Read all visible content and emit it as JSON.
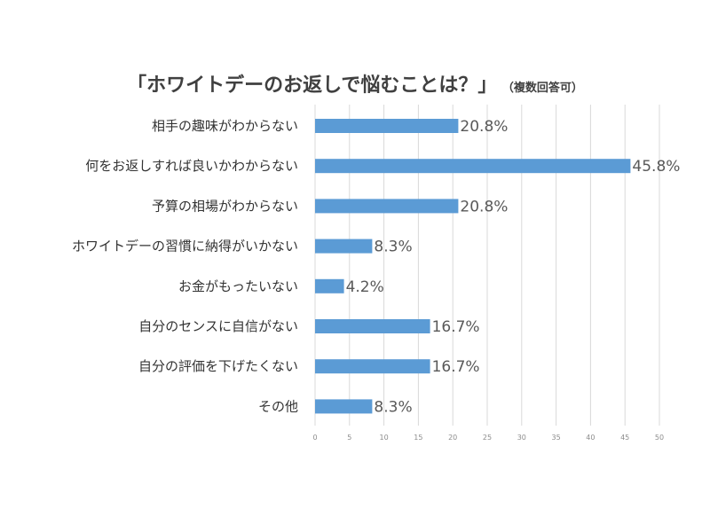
{
  "chart_data": {
    "type": "bar",
    "orientation": "horizontal",
    "title": "「ホワイトデーのお返しで悩むことは？」",
    "subtitle": "（複数回答可）",
    "categories": [
      "相手の趣味がわからない",
      "何をお返しすれば良いかわからない",
      "予算の相場がわからない",
      "ホワイトデーの習慣に納得がいかない",
      "お金がもったいない",
      "自分のセンスに自信がない",
      "自分の評価を下げたくない",
      "その他"
    ],
    "values": [
      20.8,
      45.8,
      20.8,
      8.3,
      4.2,
      16.7,
      16.7,
      8.3
    ],
    "value_labels": [
      "20.8%",
      "45.8%",
      "20.8%",
      "8.3%",
      "4.2%",
      "16.7%",
      "16.7%",
      "8.3%"
    ],
    "xlim": [
      0,
      50
    ],
    "xticks": [
      0,
      5,
      10,
      15,
      20,
      25,
      30,
      35,
      40,
      45,
      50
    ],
    "grid": true,
    "legend": "none",
    "bar_color": "#5b9bd5",
    "grid_color": "#d9d9d9"
  }
}
